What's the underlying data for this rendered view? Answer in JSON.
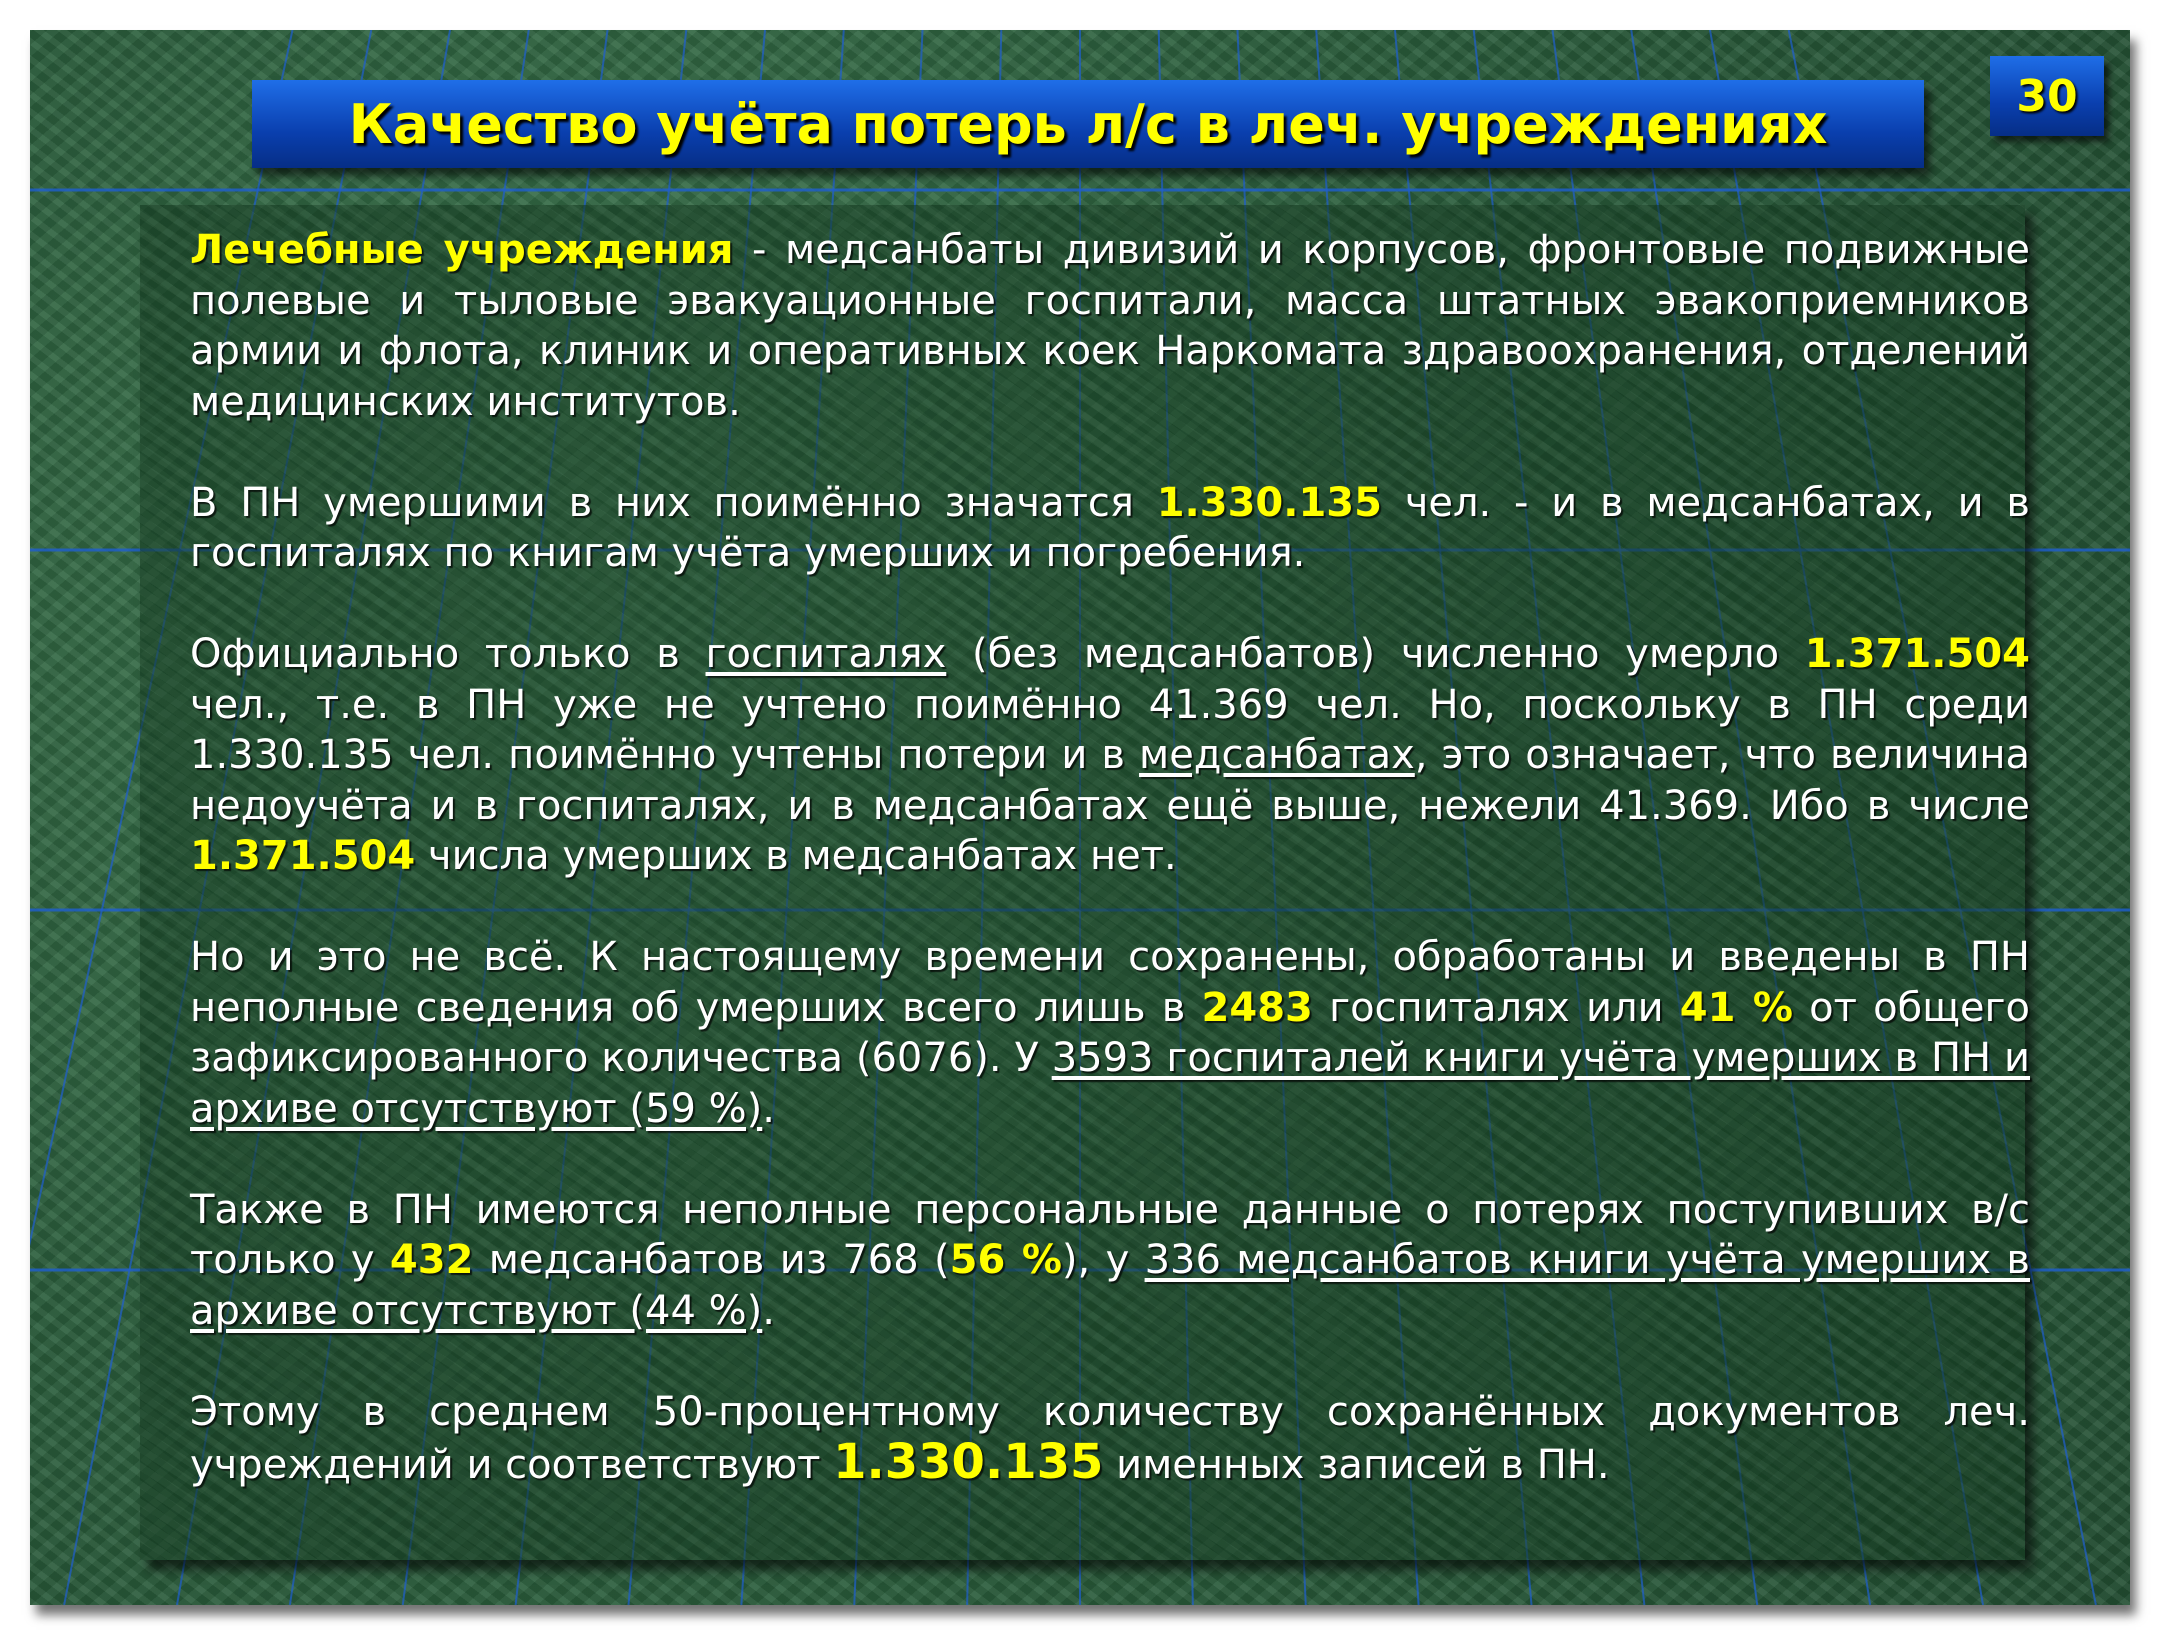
{
  "slide": {
    "title": "Качество учёта потерь л/с в леч. учреждениях",
    "page_number": "30",
    "colors": {
      "background": "#2b5e3c",
      "title_bar": "#0a3fae",
      "highlight": "#ffff00",
      "text": "#ffffff"
    },
    "paragraphs": [
      [
        {
          "text": "Лечебные учреждения",
          "style": "hl"
        },
        {
          "text": " - медсанбаты дивизий и корпусов, фронтовые подвижные полевые и тыловые эвакуационные госпитали, масса штатных эвакоприемников армии и флота, клиник и оперативных коек Наркомата здравоохранения, отделений медицинских институтов.",
          "style": ""
        }
      ],
      [
        {
          "text": "В ПН умершими в них поимённо значатся ",
          "style": ""
        },
        {
          "text": "1.330.135",
          "style": "hl"
        },
        {
          "text": " чел. - и в медсанбатах, и в госпиталях по книгам учёта умерших и погребения.",
          "style": ""
        }
      ],
      [
        {
          "text": "Официально только в ",
          "style": ""
        },
        {
          "text": "госпиталях",
          "style": "u"
        },
        {
          "text": " (без медсанбатов) численно умерло ",
          "style": ""
        },
        {
          "text": "1.371.504",
          "style": "hl"
        },
        {
          "text": " чел., т.е. в ПН уже не учтено поимённо 41.369 чел. Но, поскольку в ПН среди 1.330.135 чел. поимённо учтены потери и в ",
          "style": ""
        },
        {
          "text": "медсанбатах",
          "style": "u"
        },
        {
          "text": ", это означает, что величина недоучёта и в госпиталях, и в медсанбатах ещё выше, нежели 41.369. Ибо в числе ",
          "style": ""
        },
        {
          "text": "1.371.504",
          "style": "hl"
        },
        {
          "text": " числа умерших в медсанбатах нет.",
          "style": ""
        }
      ],
      [
        {
          "text": "Но и это не всё. К настоящему времени сохранены, обработаны и введены в ПН неполные сведения об умерших всего лишь в ",
          "style": ""
        },
        {
          "text": "2483",
          "style": "hl"
        },
        {
          "text": " госпиталях или ",
          "style": ""
        },
        {
          "text": "41 %",
          "style": "hl"
        },
        {
          "text": " от общего зафиксированного количества (6076). У ",
          "style": ""
        },
        {
          "text": "3593 госпиталей книги учёта умерших в ПН и архиве отсутствуют (59 %)",
          "style": "u"
        },
        {
          "text": ".",
          "style": ""
        }
      ],
      [
        {
          "text": "Также в ПН имеются неполные персональные данные о потерях поступивших в/с только у ",
          "style": ""
        },
        {
          "text": "432",
          "style": "hl"
        },
        {
          "text": " медсанбатов из 768 (",
          "style": ""
        },
        {
          "text": "56 %",
          "style": "hl"
        },
        {
          "text": "), у ",
          "style": ""
        },
        {
          "text": "336 медсанбатов книги учёта умерших в архиве отсутствуют (44 %)",
          "style": "u"
        },
        {
          "text": ".",
          "style": ""
        }
      ],
      [
        {
          "text": "Этому в среднем 50-процентному количеству сохранённых документов леч. учреждений и соответствуют ",
          "style": ""
        },
        {
          "text": "1.330.135",
          "style": "hl big"
        },
        {
          "text": " именных записей в ПН.",
          "style": ""
        }
      ]
    ]
  }
}
